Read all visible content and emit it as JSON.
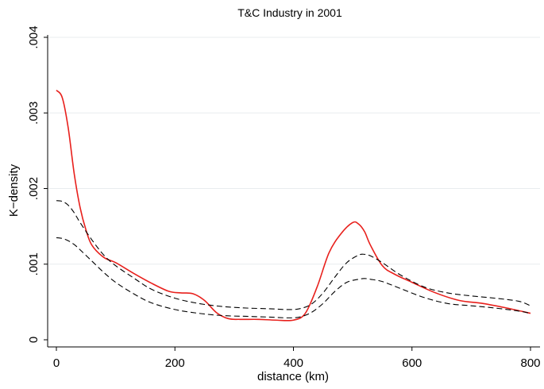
{
  "chart_data": {
    "type": "line",
    "title": "T&C Industry in 2001",
    "xlabel": "distance (km)",
    "ylabel": "K−density",
    "xlim": [
      0,
      800
    ],
    "ylim": [
      0,
      0.004
    ],
    "x_ticks": [
      0,
      200,
      400,
      600,
      800
    ],
    "x_tick_labels": [
      "0",
      "200",
      "400",
      "600",
      "800"
    ],
    "y_ticks": [
      0,
      0.001,
      0.002,
      0.003,
      0.004
    ],
    "y_tick_labels": [
      "0",
      ".001",
      ".002",
      ".003",
      ".004"
    ],
    "grid": "horizontal",
    "legend": "none",
    "series": [
      {
        "style": "solid",
        "color": "#e8201c",
        "x": [
          0,
          10,
          20,
          30,
          40,
          50,
          60,
          80,
          100,
          130,
          160,
          190,
          210,
          230,
          250,
          270,
          290,
          310,
          340,
          370,
          400,
          420,
          440,
          460,
          480,
          500,
          510,
          520,
          530,
          550,
          570,
          600,
          640,
          680,
          720,
          760,
          800
        ],
        "y": [
          0.0033,
          0.0032,
          0.0028,
          0.0022,
          0.00175,
          0.00145,
          0.00125,
          0.00109,
          0.00102,
          0.00088,
          0.00075,
          0.00064,
          0.00062,
          0.00061,
          0.00052,
          0.00036,
          0.00028,
          0.00027,
          0.00027,
          0.00026,
          0.00026,
          0.00035,
          0.0007,
          0.00115,
          0.0014,
          0.00155,
          0.00153,
          0.00143,
          0.00125,
          0.00098,
          0.00087,
          0.00076,
          0.00062,
          0.00052,
          0.00048,
          0.00042,
          0.00035
        ]
      },
      {
        "style": "dashed",
        "color": "#000000",
        "x": [
          0,
          10,
          20,
          30,
          40,
          60,
          80,
          100,
          130,
          160,
          200,
          240,
          280,
          320,
          360,
          390,
          410,
          430,
          450,
          470,
          490,
          510,
          520,
          530,
          550,
          580,
          620,
          660,
          700,
          740,
          780,
          800
        ],
        "y": [
          0.00184,
          0.00183,
          0.00178,
          0.00168,
          0.00155,
          0.00132,
          0.00112,
          0.00098,
          0.00082,
          0.00067,
          0.00055,
          0.00048,
          0.00044,
          0.00042,
          0.00041,
          0.0004,
          0.00041,
          0.00047,
          0.00062,
          0.00083,
          0.00102,
          0.00112,
          0.00113,
          0.00111,
          0.00102,
          0.00086,
          0.0007,
          0.00062,
          0.00058,
          0.00055,
          0.00051,
          0.00045
        ]
      },
      {
        "style": "dashed",
        "color": "#000000",
        "x": [
          0,
          10,
          20,
          30,
          40,
          60,
          80,
          100,
          130,
          160,
          200,
          240,
          280,
          320,
          360,
          390,
          410,
          430,
          450,
          470,
          490,
          510,
          520,
          530,
          550,
          580,
          620,
          660,
          700,
          740,
          780,
          800
        ],
        "y": [
          0.00135,
          0.00134,
          0.00131,
          0.00126,
          0.00119,
          0.00104,
          0.00089,
          0.00076,
          0.00061,
          0.00049,
          0.0004,
          0.00035,
          0.00032,
          0.00031,
          0.0003,
          0.00029,
          0.0003,
          0.00036,
          0.00048,
          0.00064,
          0.00076,
          0.0008,
          0.00081,
          0.0008,
          0.00077,
          0.00068,
          0.00056,
          0.00048,
          0.00045,
          0.00042,
          0.00038,
          0.00035
        ]
      }
    ]
  }
}
